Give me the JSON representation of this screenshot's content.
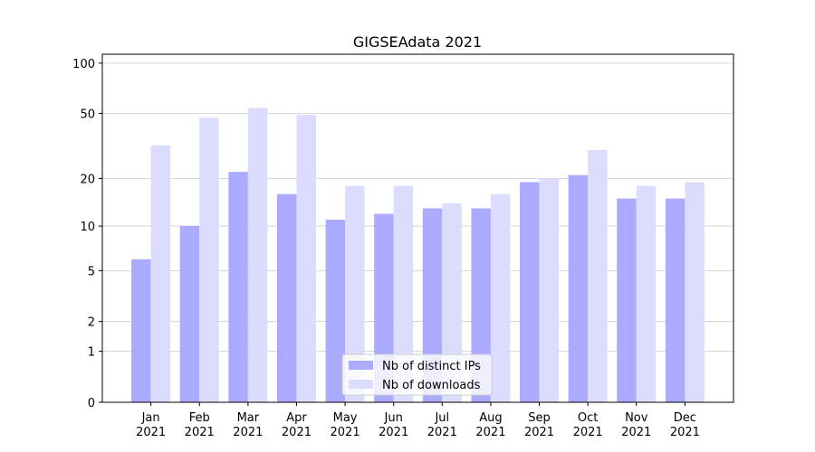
{
  "chart_data": {
    "type": "bar",
    "title": "GIGSEAdata 2021",
    "categories": [
      "Jan 2021",
      "Feb 2021",
      "Mar 2021",
      "Apr 2021",
      "May 2021",
      "Jun 2021",
      "Jul 2021",
      "Aug 2021",
      "Sep 2021",
      "Oct 2021",
      "Nov 2021",
      "Dec 2021"
    ],
    "series": [
      {
        "name": "Nb of distinct IPs",
        "color": "#aaaaff",
        "values": [
          6,
          10,
          22,
          16,
          11,
          12,
          13,
          13,
          19,
          21,
          15,
          15
        ]
      },
      {
        "name": "Nb of downloads",
        "color": "#dcdcff",
        "values": [
          32,
          47,
          54,
          49,
          18,
          18,
          14,
          16,
          20,
          30,
          18,
          19
        ]
      }
    ],
    "yscale": "log1p",
    "ylim": [
      0,
      113
    ],
    "yticks": [
      0,
      1,
      2,
      5,
      10,
      20,
      50,
      100
    ],
    "grid": true,
    "legend": "lower center"
  }
}
